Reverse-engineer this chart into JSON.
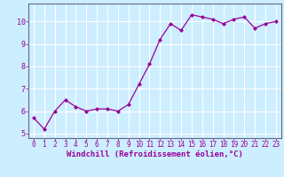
{
  "x": [
    0,
    1,
    2,
    3,
    4,
    5,
    6,
    7,
    8,
    9,
    10,
    11,
    12,
    13,
    14,
    15,
    16,
    17,
    18,
    19,
    20,
    21,
    22,
    23
  ],
  "y": [
    5.7,
    5.2,
    6.0,
    6.5,
    6.2,
    6.0,
    6.1,
    6.1,
    6.0,
    6.3,
    7.2,
    8.1,
    9.2,
    9.9,
    9.6,
    10.3,
    10.2,
    10.1,
    9.9,
    10.1,
    10.2,
    9.7,
    9.9,
    10.0
  ],
  "line_color": "#990099",
  "marker": "D",
  "markersize": 2.0,
  "linewidth": 0.9,
  "xlabel": "Windchill (Refroidissement éolien,°C)",
  "xlim": [
    -0.5,
    23.5
  ],
  "ylim": [
    4.8,
    10.8
  ],
  "yticks": [
    5,
    6,
    7,
    8,
    9,
    10
  ],
  "xticks": [
    0,
    1,
    2,
    3,
    4,
    5,
    6,
    7,
    8,
    9,
    10,
    11,
    12,
    13,
    14,
    15,
    16,
    17,
    18,
    19,
    20,
    21,
    22,
    23
  ],
  "background_color": "#cceeff",
  "grid_color": "#ffffff",
  "tick_label_fontsize": 5.5,
  "xlabel_fontsize": 6.5
}
